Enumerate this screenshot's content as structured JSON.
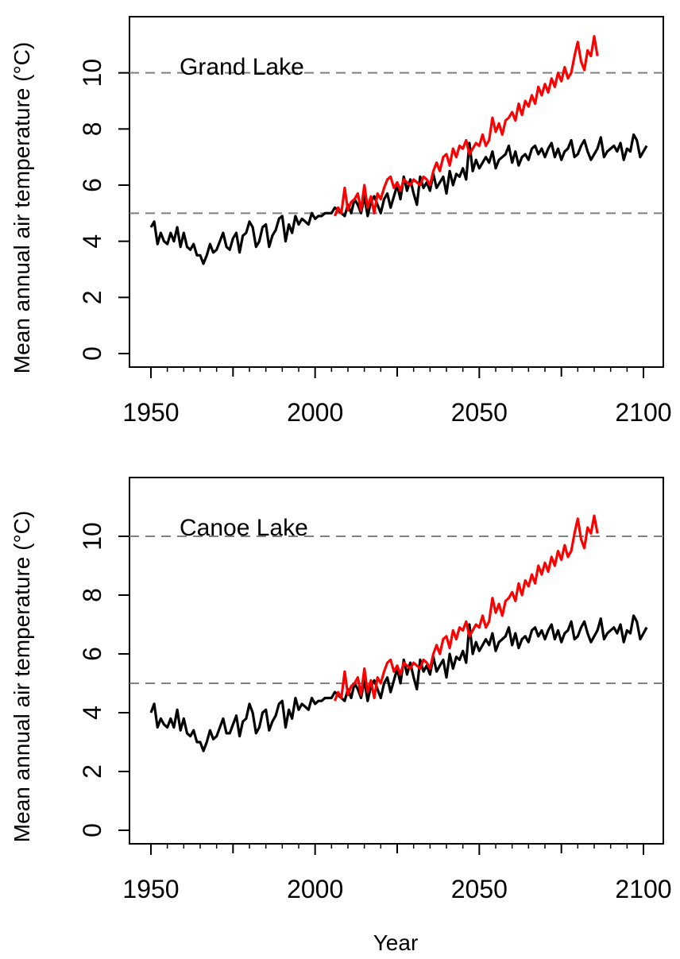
{
  "xlabel": "Year",
  "chart_data": [
    {
      "type": "line",
      "title": "Grand Lake",
      "xlabel": "Year",
      "ylabel": "Mean annual air temperature (°C)",
      "xlim": [
        1950,
        2100
      ],
      "ylim": [
        0,
        12
      ],
      "x_ticks": [
        1950,
        2000,
        2050,
        2100
      ],
      "y_ticks": [
        0,
        2,
        4,
        6,
        8,
        10
      ],
      "reference_lines": [
        5,
        10
      ],
      "grid": false,
      "colors": {
        "black": "#000000",
        "red": "#ff0000",
        "reference": "#808080"
      },
      "series": [
        {
          "color": "#000000",
          "x_start": 1950,
          "values": [
            4.5,
            4.7,
            3.9,
            4.3,
            4.0,
            3.9,
            4.3,
            4.0,
            4.5,
            3.8,
            4.3,
            3.8,
            3.7,
            3.9,
            3.5,
            3.5,
            3.2,
            3.5,
            3.9,
            3.6,
            3.7,
            4.0,
            4.3,
            3.8,
            3.7,
            4.1,
            4.3,
            3.6,
            4.2,
            4.3,
            4.7,
            4.5,
            3.8,
            4.0,
            4.5,
            4.6,
            3.8,
            4.2,
            4.4,
            4.8,
            4.9,
            4.0,
            4.6,
            4.3,
            4.9,
            4.6,
            4.8,
            4.7,
            4.6,
            5.0,
            4.8,
            4.9,
            4.9,
            5.0,
            5.0,
            5.0,
            5.2,
            5.1,
            5.0,
            4.9,
            5.3,
            5.0,
            5.5,
            5.3,
            5.0,
            5.6,
            4.9,
            5.4,
            5.6,
            5.3,
            5.0,
            5.5,
            5.7,
            5.2,
            5.6,
            6.0,
            5.5,
            6.3,
            5.8,
            6.2,
            5.7,
            5.3,
            6.3,
            5.9,
            6.1,
            5.8,
            6.4,
            5.9,
            6.1,
            6.3,
            5.7,
            6.5,
            6.0,
            6.4,
            6.3,
            6.6,
            6.2,
            7.5,
            6.5,
            6.9,
            6.6,
            6.8,
            7.0,
            6.8,
            7.2,
            6.6,
            6.9,
            7.0,
            7.1,
            7.4,
            6.8,
            7.2,
            6.7,
            7.0,
            7.1,
            6.9,
            7.3,
            7.4,
            7.1,
            7.3,
            7.0,
            7.3,
            7.5,
            7.0,
            7.3,
            6.9,
            7.2,
            7.3,
            7.6,
            7.0,
            7.1,
            7.4,
            7.6,
            7.2,
            6.9,
            7.1,
            7.3,
            7.7,
            7.0,
            7.2,
            7.3,
            7.4,
            7.2,
            7.5,
            6.9,
            7.3,
            7.2,
            7.8,
            7.6,
            7.0,
            7.2,
            7.4
          ]
        },
        {
          "color": "#ff0000",
          "x_start": 2006,
          "values": [
            4.9,
            5.2,
            5.0,
            5.9,
            5.1,
            5.4,
            5.5,
            5.7,
            5.1,
            6.0,
            5.2,
            5.6,
            5.0,
            5.7,
            5.5,
            5.9,
            6.2,
            6.3,
            5.9,
            6.1,
            5.8,
            6.2,
            6.1,
            6.0,
            6.2,
            6.1,
            6.0,
            6.3,
            6.2,
            6.0,
            6.5,
            6.8,
            6.5,
            7.0,
            7.1,
            6.7,
            7.3,
            7.0,
            7.4,
            7.3,
            7.6,
            7.1,
            7.3,
            7.5,
            7.4,
            7.8,
            7.4,
            7.6,
            8.4,
            7.9,
            8.2,
            7.8,
            8.3,
            8.4,
            8.6,
            8.3,
            8.9,
            8.5,
            9.0,
            8.8,
            9.2,
            8.9,
            9.5,
            9.2,
            9.6,
            9.3,
            9.8,
            9.5,
            10.0,
            9.7,
            10.2,
            9.8,
            10.0,
            10.6,
            11.1,
            10.4,
            10.1,
            10.8,
            10.6,
            11.3,
            10.6
          ]
        }
      ]
    },
    {
      "type": "line",
      "title": "Canoe Lake",
      "xlabel": "Year",
      "ylabel": "Mean annual air temperature (°C)",
      "xlim": [
        1950,
        2100
      ],
      "ylim": [
        0,
        12
      ],
      "x_ticks": [
        1950,
        2000,
        2050,
        2100
      ],
      "y_ticks": [
        0,
        2,
        4,
        6,
        8,
        10
      ],
      "reference_lines": [
        5,
        10
      ],
      "grid": false,
      "colors": {
        "black": "#000000",
        "red": "#ff0000",
        "reference": "#808080"
      },
      "series": [
        {
          "color": "#000000",
          "x_start": 1950,
          "values": [
            4.0,
            4.3,
            3.5,
            3.8,
            3.6,
            3.5,
            3.8,
            3.5,
            4.1,
            3.4,
            3.8,
            3.3,
            3.2,
            3.4,
            3.0,
            3.0,
            2.7,
            3.0,
            3.4,
            3.1,
            3.2,
            3.5,
            3.8,
            3.3,
            3.3,
            3.6,
            3.9,
            3.2,
            3.7,
            3.8,
            4.3,
            4.0,
            3.3,
            3.5,
            4.0,
            4.1,
            3.4,
            3.7,
            3.9,
            4.3,
            4.4,
            3.5,
            4.1,
            3.8,
            4.5,
            4.1,
            4.3,
            4.2,
            4.1,
            4.5,
            4.3,
            4.4,
            4.4,
            4.5,
            4.5,
            4.5,
            4.7,
            4.6,
            4.5,
            4.4,
            4.8,
            4.5,
            5.0,
            4.8,
            4.5,
            5.1,
            4.4,
            4.9,
            5.1,
            4.8,
            4.5,
            5.0,
            5.2,
            4.7,
            5.1,
            5.5,
            5.0,
            5.8,
            5.3,
            5.7,
            5.2,
            4.8,
            5.8,
            5.4,
            5.6,
            5.3,
            5.9,
            5.4,
            5.6,
            5.8,
            5.2,
            6.0,
            5.5,
            5.9,
            5.8,
            6.1,
            5.7,
            7.0,
            6.0,
            6.4,
            6.1,
            6.3,
            6.5,
            6.3,
            6.7,
            6.1,
            6.4,
            6.5,
            6.6,
            6.9,
            6.3,
            6.7,
            6.2,
            6.5,
            6.6,
            6.4,
            6.8,
            6.9,
            6.6,
            6.8,
            6.5,
            6.8,
            7.0,
            6.5,
            6.8,
            6.4,
            6.7,
            6.8,
            7.1,
            6.5,
            6.6,
            6.9,
            7.1,
            6.7,
            6.4,
            6.6,
            6.8,
            7.2,
            6.5,
            6.7,
            6.8,
            6.9,
            6.7,
            7.0,
            6.4,
            6.8,
            6.7,
            7.3,
            7.1,
            6.5,
            6.7,
            6.9
          ]
        },
        {
          "color": "#ff0000",
          "x_start": 2006,
          "values": [
            4.4,
            4.7,
            4.5,
            5.4,
            4.6,
            4.9,
            5.0,
            5.2,
            4.6,
            5.5,
            4.7,
            5.1,
            4.5,
            5.2,
            5.0,
            5.4,
            5.7,
            5.8,
            5.4,
            5.6,
            5.3,
            5.7,
            5.6,
            5.5,
            5.7,
            5.6,
            5.5,
            5.8,
            5.7,
            5.5,
            6.0,
            6.3,
            6.0,
            6.5,
            6.6,
            6.2,
            6.8,
            6.5,
            6.9,
            6.8,
            7.1,
            6.6,
            6.8,
            7.0,
            6.9,
            7.3,
            6.9,
            7.1,
            7.9,
            7.4,
            7.7,
            7.3,
            7.8,
            7.9,
            8.1,
            7.8,
            8.4,
            8.0,
            8.5,
            8.3,
            8.7,
            8.4,
            9.0,
            8.7,
            9.1,
            8.8,
            9.3,
            9.0,
            9.5,
            9.2,
            9.7,
            9.3,
            9.5,
            10.1,
            10.6,
            9.9,
            9.6,
            10.3,
            10.1,
            10.7,
            10.1
          ]
        }
      ]
    }
  ]
}
